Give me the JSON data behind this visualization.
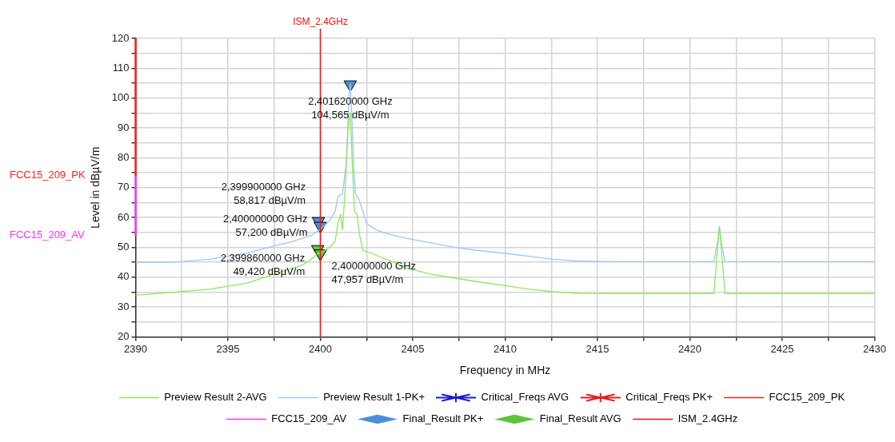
{
  "chart_data": {
    "type": "line",
    "xlabel": "Frequency in MHz",
    "ylabel": "Level in dBµV/m",
    "xlim": [
      2390,
      2430
    ],
    "xticks": [
      2390,
      {
        "value": 2392.5,
        "label": null
      },
      2395,
      {
        "value": 2397.5,
        "label": null
      },
      2400,
      {
        "value": 2402.5,
        "label": null
      },
      2405,
      {
        "value": 2407.5,
        "label": null
      },
      2410,
      {
        "value": 2412.5,
        "label": null
      },
      2415,
      {
        "value": 2417.5,
        "label": null
      },
      2420,
      {
        "value": 2422.5,
        "label": null
      },
      2425,
      {
        "value": 2427.5,
        "label": null
      },
      2430
    ],
    "ylim": [
      20,
      120
    ],
    "yticks": [
      20,
      {
        "value": 25,
        "label": null
      },
      30,
      {
        "value": 35,
        "label": null
      },
      40,
      {
        "value": 45,
        "label": null
      },
      50,
      {
        "value": 55,
        "label": null
      },
      60,
      {
        "value": 65,
        "label": null
      },
      70,
      {
        "value": 75,
        "label": null
      },
      80,
      {
        "value": 85,
        "label": null
      },
      90,
      {
        "value": 95,
        "label": null
      },
      100,
      {
        "value": 105,
        "label": null
      },
      110,
      {
        "value": 115,
        "label": null
      },
      120
    ],
    "grid": true,
    "legend": "bottom",
    "series": [
      {
        "name": "Preview Result 2-AVG",
        "type": "line",
        "marker": "none",
        "color": "#8ee85a",
        "x": [
          2390,
          2392,
          2394,
          2395,
          2396,
          2397,
          2398,
          2399,
          2399.5,
          2399.86,
          2400,
          2400.5,
          2400.8,
          2400.95,
          2401.1,
          2401.2,
          2401.35,
          2401.5,
          2401.62,
          2401.75,
          2401.85,
          2401.99,
          2402.1,
          2402.3,
          2402.8,
          2403.3,
          2404,
          2404.7,
          2406,
          2407.3,
          2408.5,
          2410,
          2411.3,
          2412.6,
          2414,
          2416,
          2418,
          2420,
          2421.3,
          2421.5,
          2421.6,
          2421.7,
          2421.9,
          2424,
          2427,
          2430
        ],
        "values": [
          34,
          35,
          36,
          37,
          38,
          40,
          42,
          44,
          46,
          48,
          48,
          50,
          52,
          58,
          61,
          56,
          70,
          90,
          95,
          75,
          62,
          61,
          55,
          49,
          48,
          46.6,
          45,
          43,
          41,
          39.7,
          38.5,
          37.2,
          36,
          35.2,
          34.6,
          34.5,
          34.5,
          34.5,
          34.5,
          50,
          57,
          50,
          34.5,
          34.5,
          34.5,
          34.5
        ]
      },
      {
        "name": "Preview Result 1-PK+",
        "type": "line",
        "marker": "none",
        "color": "#9cc8f5",
        "x": [
          2390,
          2392,
          2394,
          2395,
          2396,
          2397.5,
          2398.5,
          2399.5,
          2400,
          2400.5,
          2400.8,
          2400.95,
          2401.2,
          2401.4,
          2401.55,
          2401.62,
          2401.7,
          2401.8,
          2401.9,
          2402.1,
          2402.3,
          2402.5,
          2403,
          2403.4,
          2404,
          2404.7,
          2406,
          2407.3,
          2408.5,
          2410,
          2411.3,
          2412.6,
          2413.9,
          2416,
          2418,
          2420,
          2421.3,
          2421.5,
          2421.6,
          2421.7,
          2421.9,
          2424,
          2427,
          2430
        ],
        "values": [
          45,
          45,
          46,
          47,
          48,
          50.5,
          52,
          54,
          56,
          59,
          62,
          67,
          68,
          78,
          100,
          104.565,
          95,
          78,
          68,
          66,
          62,
          58,
          56,
          55,
          54,
          53,
          51.5,
          50,
          49,
          48,
          47,
          46,
          45.5,
          45.2,
          45.2,
          45.2,
          45.2,
          52,
          57,
          52,
          45.2,
          45.2,
          45.2,
          45.2
        ]
      },
      {
        "name": "Critical_Freqs AVG",
        "type": "scatter",
        "marker": "star",
        "color": "#1c1cc8"
      },
      {
        "name": "Critical_Freqs PK+",
        "type": "scatter",
        "marker": "star",
        "color": "#e02020"
      },
      {
        "name": "FCC15_209_PK",
        "type": "line",
        "marker": "none",
        "color": "#ff2020",
        "x": [
          2390,
          2390
        ],
        "values": [
          74,
          120
        ]
      },
      {
        "name": "FCC15_209_AV",
        "type": "line",
        "marker": "none",
        "color": "#ff33ff",
        "x": [
          2390,
          2390
        ],
        "values": [
          54,
          74
        ]
      },
      {
        "name": "Final_Result PK+",
        "type": "scatter",
        "marker": "triangle",
        "color": "#4a90d9",
        "x": [
          2401.62,
          2399.9,
          2400
        ],
        "values": [
          104.565,
          58.817,
          57.2
        ],
        "value_labels": [
          "2,401620000 GHz\n104,565 dBµV/m",
          "2,399900000 GHz\n58,817 dBµV/m",
          "2,400000000 GHz\n57,200 dBµV/m"
        ]
      },
      {
        "name": "Final_Result AVG",
        "type": "scatter",
        "marker": "triangle",
        "color": "#5ec43c",
        "x": [
          2399.86,
          2400
        ],
        "values": [
          49.42,
          47.957
        ],
        "value_labels": [
          "2,399860000 GHz\n49,420 dBµV/m",
          "2,400000000 GHz\n47,957 dBµV/m"
        ]
      }
    ],
    "ref_lines": [
      {
        "axis": "x",
        "value": 2400,
        "label": "ISM_2.4GHz",
        "color": "#ee1111"
      }
    ]
  }
}
